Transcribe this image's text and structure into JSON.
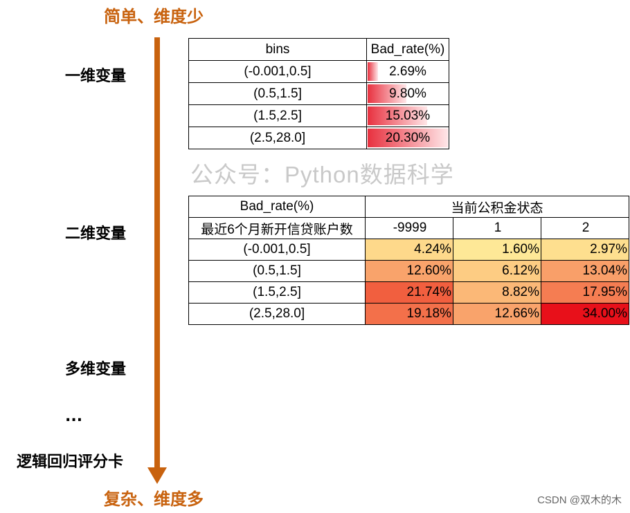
{
  "axis": {
    "top_label": "简单、维度少",
    "bottom_label": "复杂、维度多",
    "color": "#c8620e"
  },
  "levels": [
    "一维变量",
    "二维变量",
    "多维变量",
    "...",
    "逻辑回归评分卡"
  ],
  "table1": {
    "headers": [
      "bins",
      "Bad_rate(%)"
    ],
    "rows": [
      {
        "bin": "(-0.001,0.5]",
        "rate": "2.69%",
        "value": 2.69
      },
      {
        "bin": "(0.5,1.5]",
        "rate": "9.80%",
        "value": 9.8
      },
      {
        "bin": "(1.5,2.5]",
        "rate": "15.03%",
        "value": 15.03
      },
      {
        "bin": "(2.5,28.0]",
        "rate": "20.30%",
        "value": 20.3
      }
    ]
  },
  "watermark": "公众号：Python数据科学",
  "table2": {
    "corner_top": "Bad_rate(%)",
    "corner_bottom": "最近6个月新开信贷账户数",
    "col_group": "当前公积金状态",
    "columns": [
      "-9999",
      "1",
      "2"
    ],
    "rows": [
      {
        "bin": "(-0.001,0.5]",
        "cells": [
          {
            "text": "4.24%",
            "color": "#fed98b"
          },
          {
            "text": "1.60%",
            "color": "#fee897"
          },
          {
            "text": "2.97%",
            "color": "#fedf8f"
          }
        ]
      },
      {
        "bin": "(0.5,1.5]",
        "cells": [
          {
            "text": "12.60%",
            "color": "#f9a36b"
          },
          {
            "text": "6.12%",
            "color": "#fdcc83"
          },
          {
            "text": "13.04%",
            "color": "#f99f69"
          }
        ]
      },
      {
        "bin": "(1.5,2.5]",
        "cells": [
          {
            "text": "21.74%",
            "color": "#f15f3f"
          },
          {
            "text": "8.82%",
            "color": "#fbb877"
          },
          {
            "text": "17.95%",
            "color": "#f57d52"
          }
        ]
      },
      {
        "bin": "(2.5,28.0]",
        "cells": [
          {
            "text": "19.18%",
            "color": "#f3704a"
          },
          {
            "text": "12.66%",
            "color": "#f9a36b"
          },
          {
            "text": "34.00%",
            "color": "#e8101a"
          }
        ]
      }
    ]
  },
  "credit": "CSDN @双木的木"
}
